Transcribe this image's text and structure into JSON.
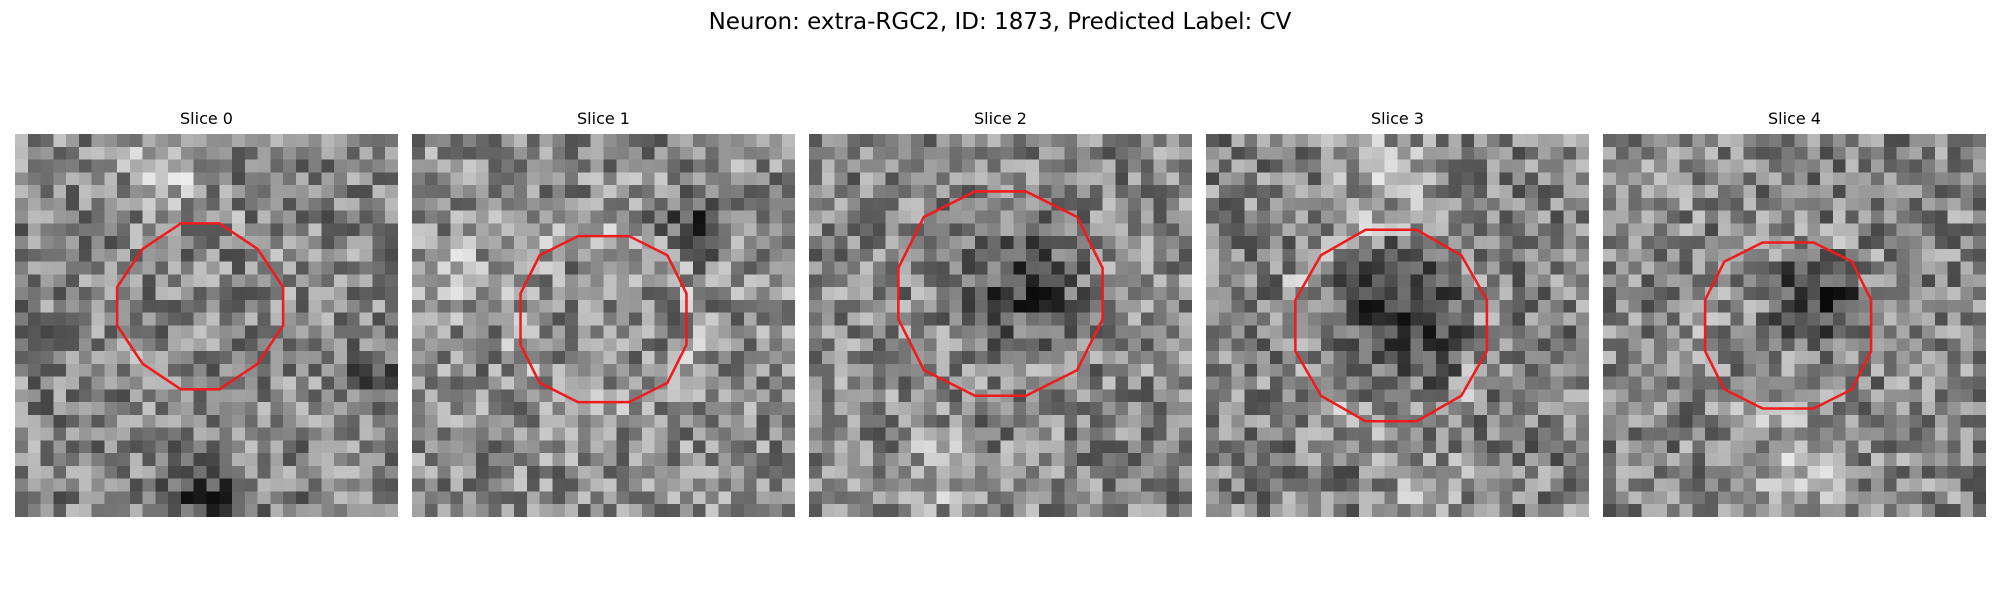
{
  "figure": {
    "title": "Neuron: extra-RGC2, ID: 1873, Predicted Label: CV"
  },
  "panels": [
    {
      "title": "Slice 0"
    },
    {
      "title": "Slice 1"
    },
    {
      "title": "Slice 2"
    },
    {
      "title": "Slice 3"
    },
    {
      "title": "Slice 4"
    }
  ],
  "contour_color": "#ee1c1c"
}
